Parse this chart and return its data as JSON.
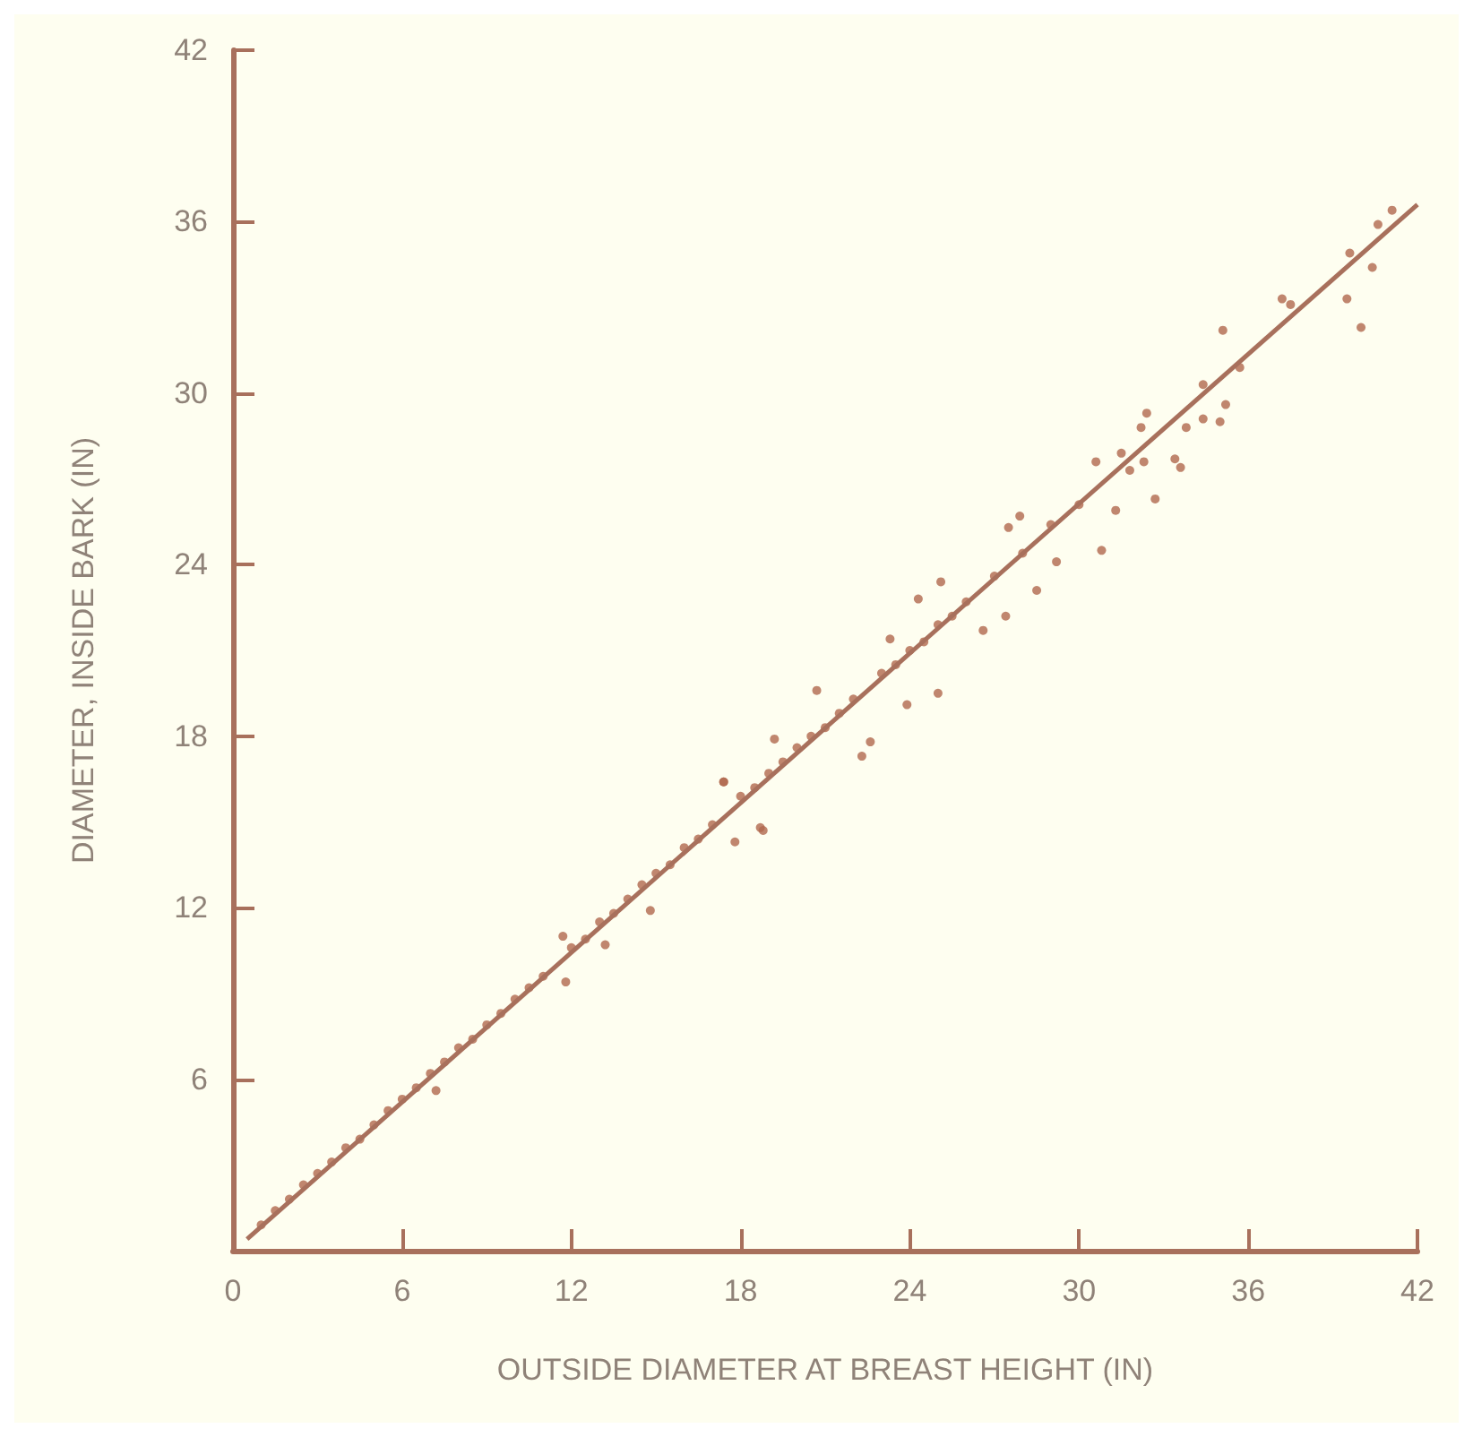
{
  "chart_data": {
    "type": "scatter",
    "xlabel": "OUTSIDE DIAMETER AT BREAST HEIGHT (IN)",
    "ylabel": "DIAMETER, INSIDE BARK (IN)",
    "xlim": [
      0,
      42
    ],
    "ylim": [
      0,
      42
    ],
    "xticks": [
      0,
      6,
      12,
      18,
      24,
      30,
      36,
      42
    ],
    "yticks": [
      {
        "value": 0,
        "label": null
      },
      6,
      12,
      18,
      24,
      30,
      36,
      42
    ],
    "grid": false,
    "marker": "circle",
    "series": [
      {
        "color": "#b0684e",
        "x": [
          1,
          1.5,
          2,
          2.5,
          3,
          3.5,
          4,
          4.5,
          5,
          5.5,
          6,
          6.5,
          7,
          7.2,
          7.5,
          8,
          8.5,
          9,
          9.5,
          10,
          10.5,
          11,
          11.7,
          11.8,
          12,
          12.5,
          13,
          13.2,
          13.5,
          14,
          14.5,
          14.8,
          15,
          15.5,
          16,
          16.5,
          17,
          17.4,
          17.4,
          17.8,
          18,
          18.5,
          18.7,
          18.8,
          19,
          19.2,
          19.5,
          20,
          20.5,
          20.7,
          21,
          21.5,
          22,
          22.3,
          22.6,
          23,
          23.3,
          23.5,
          23.9,
          24,
          24.3,
          24.5,
          25,
          25,
          25.1,
          25.5,
          26,
          26.6,
          27,
          27.4,
          27.5,
          27.9,
          28,
          28.5,
          29,
          29.2,
          30,
          30.6,
          30.8,
          31.3,
          31.5,
          31.8,
          32.2,
          32.3,
          32.4,
          32.7,
          33.4,
          33.6,
          33.8,
          34.4,
          34.4,
          35,
          35.1,
          35.2,
          35.7,
          37.2,
          37.5,
          39.5,
          39.6,
          40,
          40.4,
          40.6,
          41.1
        ],
        "values": [
          0.9,
          1.4,
          1.8,
          2.3,
          2.7,
          3.1,
          3.6,
          3.9,
          4.4,
          4.9,
          5.3,
          5.7,
          6.2,
          5.6,
          6.6,
          7.1,
          7.4,
          7.9,
          8.3,
          8.8,
          9.2,
          9.6,
          11.0,
          9.4,
          10.6,
          10.9,
          11.5,
          10.7,
          11.8,
          12.3,
          12.8,
          11.9,
          13.2,
          13.5,
          14.1,
          14.4,
          14.9,
          16.4,
          16.4,
          14.3,
          15.9,
          16.2,
          14.8,
          14.7,
          16.7,
          17.9,
          17.1,
          17.6,
          18.0,
          19.6,
          18.3,
          18.8,
          19.3,
          17.3,
          17.8,
          20.2,
          21.4,
          20.5,
          19.1,
          21.0,
          22.8,
          21.3,
          21.9,
          19.5,
          23.4,
          22.2,
          22.7,
          21.7,
          23.6,
          22.2,
          25.3,
          25.7,
          24.4,
          23.1,
          25.4,
          24.1,
          26.1,
          27.6,
          24.5,
          25.9,
          27.9,
          27.3,
          28.8,
          27.6,
          29.3,
          26.3,
          27.7,
          27.4,
          28.8,
          30.3,
          29.1,
          29.0,
          32.2,
          29.6,
          30.9,
          33.3,
          33.1,
          33.3,
          34.9,
          32.3,
          34.4,
          35.9,
          36.4
        ]
      },
      {
        "type": "line",
        "color": "#a8705c",
        "marker": "none",
        "x": [
          0.5,
          42
        ],
        "values": [
          0.4,
          36.6
        ]
      }
    ]
  }
}
